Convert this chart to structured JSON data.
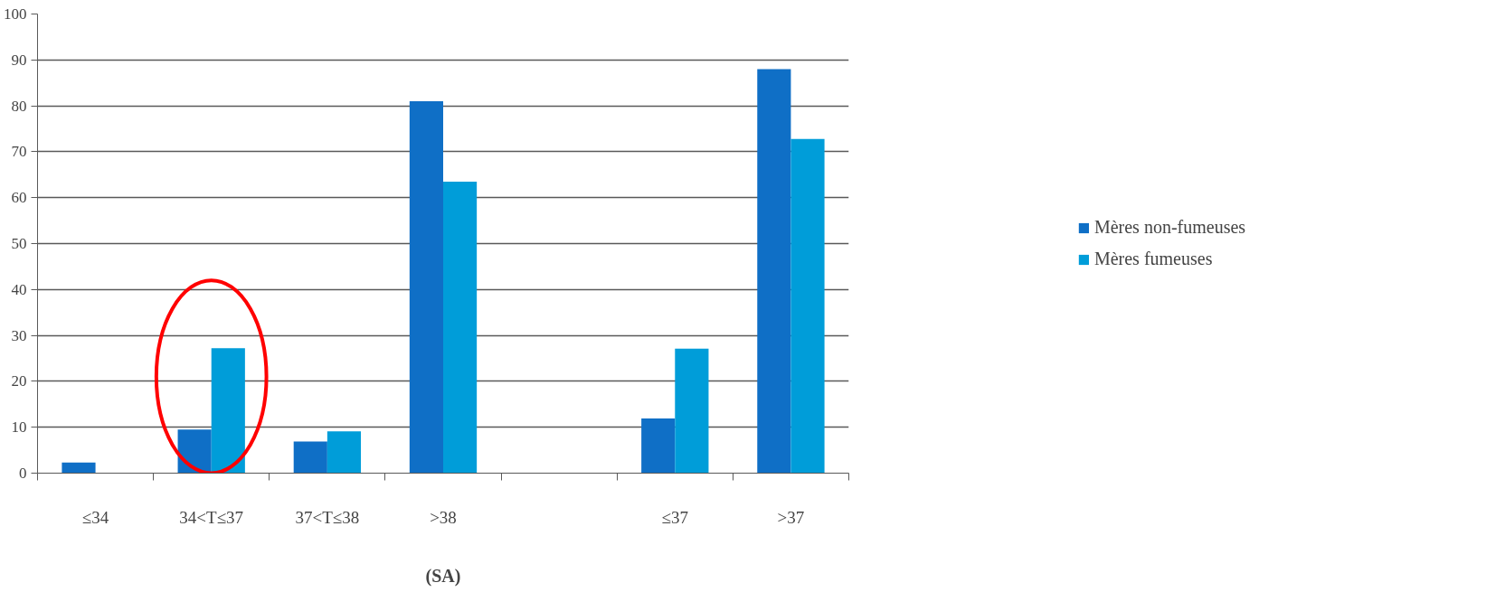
{
  "chart_data": {
    "type": "bar",
    "xlabel": "(SA)",
    "categories": [
      "≤34",
      "34<T≤37",
      "37<T≤38",
      ">38",
      null,
      "≤37",
      ">37"
    ],
    "series": [
      {
        "name": "Mères non-fumeuses",
        "color": "#0f6fc6",
        "values": [
          2.3,
          9.5,
          6.9,
          81.0,
          null,
          11.9,
          88.0
        ]
      },
      {
        "name": "Mères fumeuses",
        "color": "#009dd9",
        "values": [
          null,
          27.2,
          9.1,
          63.5,
          null,
          27.1,
          72.8
        ]
      }
    ],
    "ylim": [
      0,
      100
    ],
    "yticks": [
      0,
      10,
      20,
      30,
      40,
      50,
      60,
      70,
      80,
      90,
      100
    ],
    "grid": "y",
    "legend": "right"
  }
}
